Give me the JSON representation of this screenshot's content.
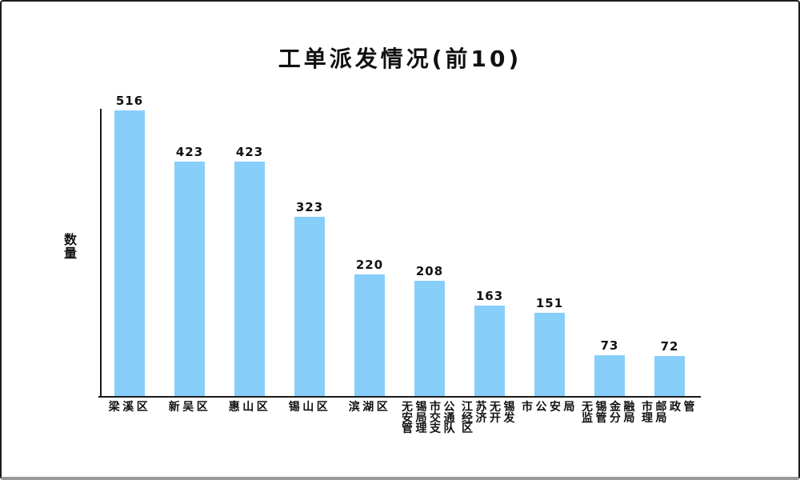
{
  "window": {
    "background": "#ffffff",
    "border_color": "#1c1c1c",
    "shadow_color": "#9a9a9a"
  },
  "chart_data": {
    "type": "bar",
    "title": "工单派发情况(前10)",
    "xlabel": "",
    "ylabel": "数量",
    "categories": [
      "梁溪区",
      "新吴区",
      "惠山区",
      "锡山区",
      "滨湖区",
      "无锡市公安局交通管理支队",
      "江苏无锡经济开发区",
      "市公安局",
      "无锡金融监管分局",
      "市邮政管理局"
    ],
    "category_label_lines": [
      [
        "梁溪区"
      ],
      [
        "新吴区"
      ],
      [
        "惠山区"
      ],
      [
        "锡山区"
      ],
      [
        "滨湖区"
      ],
      [
        "无锡市公",
        "安局交通",
        "管理支队"
      ],
      [
        "江苏无锡",
        "经济开发",
        "区"
      ],
      [
        "市公安局"
      ],
      [
        "无锡金融",
        "监管分局"
      ],
      [
        "市邮政管",
        "理局"
      ]
    ],
    "values": [
      516,
      423,
      423,
      323,
      220,
      208,
      163,
      151,
      73,
      72
    ],
    "value_labels_shown": true,
    "bar_color": "#87CEFA",
    "axis_color": "#1a1a1a",
    "text_color": "#111111",
    "ylim": [
      0,
      516
    ],
    "grid": false,
    "legend_position": "none"
  }
}
